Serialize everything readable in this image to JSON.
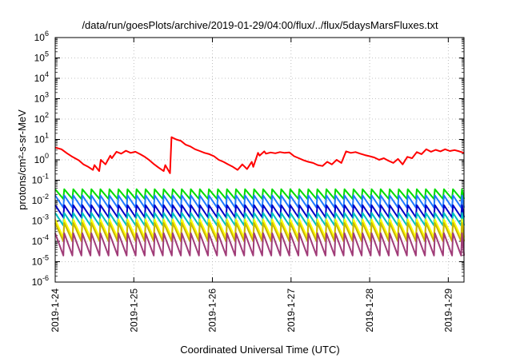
{
  "chart_data": {
    "type": "line",
    "title": "/data/run/goesPlots/archive/2019-01-29/04:00/flux/../flux/5daysMarsFluxes.txt",
    "xlabel": "Coordinated Universal Time (UTC)",
    "ylabel": "protons/cm²-s-sr-MeV",
    "yscale": "log",
    "ylim": [
      1e-06,
      1000000.0
    ],
    "xlim": [
      0,
      5.2
    ],
    "grid": true,
    "x_ticks": [
      {
        "x": 0,
        "label": "2019-1-24"
      },
      {
        "x": 1,
        "label": "2019-1-25"
      },
      {
        "x": 2,
        "label": "2019-1-26"
      },
      {
        "x": 3,
        "label": "2019-1-27"
      },
      {
        "x": 4,
        "label": "2019-1-28"
      },
      {
        "x": 5,
        "label": "2019-1-29"
      }
    ],
    "y_ticks": [
      {
        "y": 1e-06,
        "base": "10",
        "exp": "-6"
      },
      {
        "y": 1e-05,
        "base": "10",
        "exp": "-5"
      },
      {
        "y": 0.0001,
        "base": "10",
        "exp": "-4"
      },
      {
        "y": 0.001,
        "base": "10",
        "exp": "-3"
      },
      {
        "y": 0.01,
        "base": "10",
        "exp": "-2"
      },
      {
        "y": 0.1,
        "base": "10",
        "exp": "-1"
      },
      {
        "y": 1,
        "base": "10",
        "exp": "0"
      },
      {
        "y": 10,
        "base": "10",
        "exp": "1"
      },
      {
        "y": 100,
        "base": "10",
        "exp": "2"
      },
      {
        "y": 1000,
        "base": "10",
        "exp": "3"
      },
      {
        "y": 10000,
        "base": "10",
        "exp": "4"
      },
      {
        "y": 100000,
        "base": "10",
        "exp": "5"
      },
      {
        "y": 1000000,
        "base": "10",
        "exp": "6"
      }
    ],
    "series": [
      {
        "color": "#ff0000",
        "x": [
          0.0,
          0.08,
          0.15,
          0.22,
          0.3,
          0.36,
          0.42,
          0.48,
          0.5,
          0.56,
          0.58,
          0.64,
          0.7,
          0.72,
          0.78,
          0.84,
          0.9,
          0.96,
          1.02,
          1.08,
          1.14,
          1.2,
          1.26,
          1.32,
          1.38,
          1.4,
          1.46,
          1.48,
          1.54,
          1.6,
          1.66,
          1.72,
          1.78,
          1.84,
          1.9,
          1.96,
          2.02,
          2.08,
          2.14,
          2.2,
          2.26,
          2.32,
          2.38,
          2.44,
          2.5,
          2.52,
          2.58,
          2.6,
          2.66,
          2.68,
          2.74,
          2.8,
          2.86,
          2.92,
          2.98,
          3.04,
          3.1,
          3.16,
          3.22,
          3.28,
          3.34,
          3.4,
          3.46,
          3.52,
          3.58,
          3.64,
          3.7,
          3.76,
          3.82,
          3.88,
          3.94,
          4.0,
          4.06,
          4.12,
          4.18,
          4.24,
          4.3,
          4.36,
          4.42,
          4.48,
          4.54,
          4.6,
          4.66,
          4.72,
          4.78,
          4.84,
          4.9,
          4.96,
          5.02,
          5.08,
          5.14,
          5.2
        ],
        "y": [
          4,
          3.3,
          2.1,
          1.4,
          0.95,
          0.6,
          0.45,
          0.32,
          0.55,
          0.28,
          1.0,
          0.6,
          1.6,
          1.2,
          2.5,
          2.0,
          2.8,
          2.2,
          2.5,
          1.9,
          1.4,
          0.95,
          0.6,
          0.4,
          0.28,
          0.55,
          0.22,
          13,
          10,
          8.5,
          5.5,
          4.5,
          3.3,
          2.7,
          2.2,
          1.9,
          1.5,
          1.0,
          0.8,
          0.6,
          0.45,
          0.32,
          0.6,
          0.35,
          0.8,
          0.45,
          2.2,
          1.6,
          2.6,
          2.0,
          2.3,
          2.1,
          2.4,
          2.2,
          2.3,
          1.5,
          1.2,
          0.95,
          0.8,
          0.7,
          0.55,
          0.5,
          0.8,
          0.6,
          1.0,
          0.7,
          2.6,
          2.2,
          2.4,
          2.0,
          1.7,
          1.5,
          1.3,
          1.0,
          1.2,
          0.9,
          0.7,
          1.1,
          0.6,
          1.4,
          1.2,
          2.4,
          1.9,
          3.3,
          2.5,
          3.1,
          2.6,
          3.3,
          2.7,
          3.0,
          2.6,
          2.2
        ]
      },
      {
        "color": "#00dd00",
        "period": 0.115,
        "peak": 0.036,
        "trough": 0.012,
        "x_start": 0,
        "x_end": 5.2
      },
      {
        "color": "#1e78ff",
        "period": 0.115,
        "peak": 0.018,
        "trough": 0.0045,
        "x_start": 0,
        "x_end": 5.2
      },
      {
        "color": "#0000c8",
        "period": 0.115,
        "peak": 0.006,
        "trough": 0.0015,
        "x_start": 0,
        "x_end": 5.2
      },
      {
        "color": "#00c0c0",
        "period": 0.115,
        "peak": 0.0025,
        "trough": 0.0006,
        "x_start": 0,
        "x_end": 5.2
      },
      {
        "color": "#ffff00",
        "period": 0.115,
        "peak": 0.0012,
        "trough": 0.00015,
        "x_start": 0,
        "x_end": 5.2
      },
      {
        "color": "#c8b400",
        "period": 0.115,
        "peak": 0.0008,
        "trough": 0.0001,
        "x_start": 0,
        "x_end": 5.2
      },
      {
        "color": "#a03c78",
        "period": 0.115,
        "peak": 0.00025,
        "trough": 2e-05,
        "x_start": 0,
        "x_end": 5.2
      }
    ]
  }
}
